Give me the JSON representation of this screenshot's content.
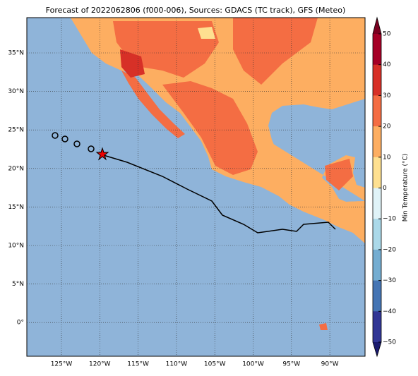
{
  "title": "Forecast of 2022062806 (f000-006), Sources: GDACS (TC track), GFS (Meteo)",
  "map": {
    "xticks": [
      "125°W",
      "120°W",
      "115°W",
      "110°W",
      "105°W",
      "100°W",
      "95°W",
      "90°W"
    ],
    "yticks": [
      "35°N",
      "30°N",
      "25°N",
      "20°N",
      "15°N",
      "10°N",
      "5°N",
      "0°"
    ]
  },
  "colorbar": {
    "label": "Min Temperature (°C)",
    "ticks": [
      "50",
      "40",
      "30",
      "20",
      "10",
      "0",
      "−10",
      "−20",
      "−30",
      "−40",
      "−50"
    ]
  }
}
